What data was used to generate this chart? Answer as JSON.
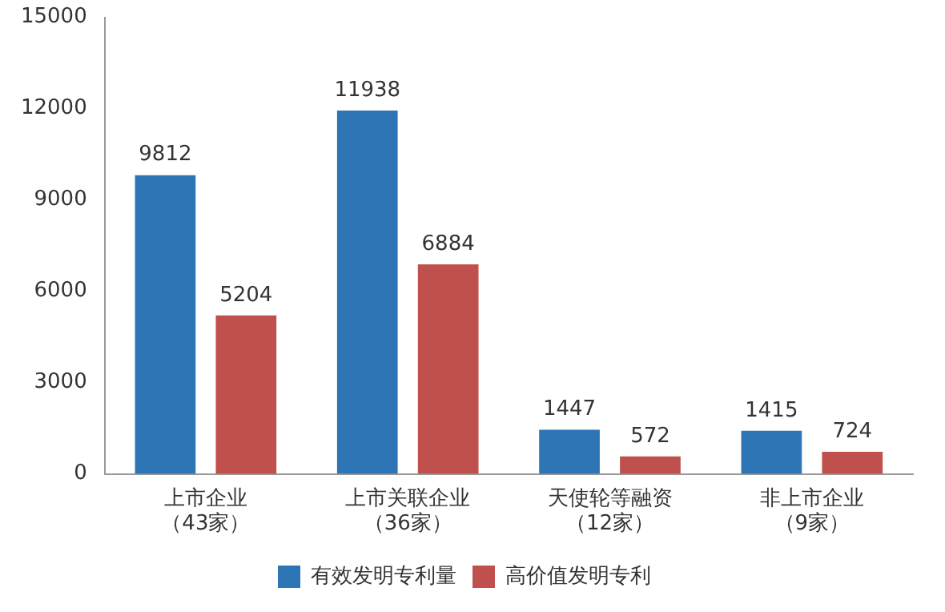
{
  "chart_data": {
    "type": "bar",
    "categories": [
      "上市企业（43家）",
      "上市关联企业（36家）",
      "天使轮等融资（12家）",
      "非上市企业（9家）"
    ],
    "series": [
      {
        "name": "有效发明专利量",
        "color": "#2e75b6",
        "values": [
          9812,
          11938,
          1447,
          1415
        ]
      },
      {
        "name": "高价值发明专利",
        "color": "#c0504d",
        "values": [
          5204,
          6884,
          572,
          724
        ]
      }
    ],
    "ylim": [
      0,
      15000
    ],
    "yticks": [
      0,
      3000,
      6000,
      9000,
      12000,
      15000
    ],
    "grid": false,
    "legend": "bottom",
    "data_labels": true
  }
}
